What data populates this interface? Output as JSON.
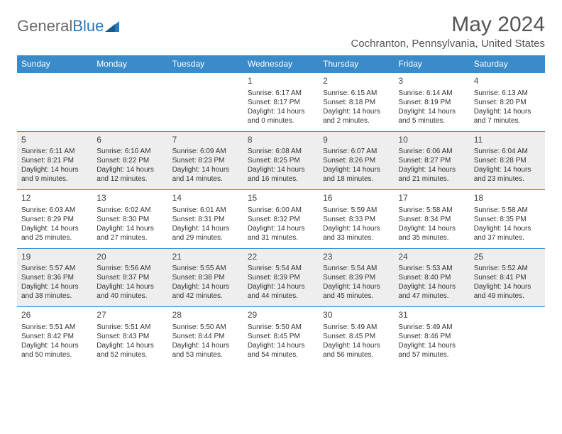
{
  "logo": {
    "text1": "General",
    "text2": "Blue"
  },
  "header": {
    "month_title": "May 2024",
    "location": "Cochranton, Pennsylvania, United States"
  },
  "colors": {
    "header_bg": "#3a8bc9",
    "alt_row_bg": "#eeeeee",
    "text": "#333333",
    "title_text": "#555555"
  },
  "day_names": [
    "Sunday",
    "Monday",
    "Tuesday",
    "Wednesday",
    "Thursday",
    "Friday",
    "Saturday"
  ],
  "weeks": [
    [
      null,
      null,
      null,
      {
        "n": "1",
        "sr": "Sunrise: 6:17 AM",
        "ss": "Sunset: 8:17 PM",
        "d1": "Daylight: 14 hours",
        "d2": "and 0 minutes."
      },
      {
        "n": "2",
        "sr": "Sunrise: 6:15 AM",
        "ss": "Sunset: 8:18 PM",
        "d1": "Daylight: 14 hours",
        "d2": "and 2 minutes."
      },
      {
        "n": "3",
        "sr": "Sunrise: 6:14 AM",
        "ss": "Sunset: 8:19 PM",
        "d1": "Daylight: 14 hours",
        "d2": "and 5 minutes."
      },
      {
        "n": "4",
        "sr": "Sunrise: 6:13 AM",
        "ss": "Sunset: 8:20 PM",
        "d1": "Daylight: 14 hours",
        "d2": "and 7 minutes."
      }
    ],
    [
      {
        "n": "5",
        "sr": "Sunrise: 6:11 AM",
        "ss": "Sunset: 8:21 PM",
        "d1": "Daylight: 14 hours",
        "d2": "and 9 minutes."
      },
      {
        "n": "6",
        "sr": "Sunrise: 6:10 AM",
        "ss": "Sunset: 8:22 PM",
        "d1": "Daylight: 14 hours",
        "d2": "and 12 minutes."
      },
      {
        "n": "7",
        "sr": "Sunrise: 6:09 AM",
        "ss": "Sunset: 8:23 PM",
        "d1": "Daylight: 14 hours",
        "d2": "and 14 minutes."
      },
      {
        "n": "8",
        "sr": "Sunrise: 6:08 AM",
        "ss": "Sunset: 8:25 PM",
        "d1": "Daylight: 14 hours",
        "d2": "and 16 minutes."
      },
      {
        "n": "9",
        "sr": "Sunrise: 6:07 AM",
        "ss": "Sunset: 8:26 PM",
        "d1": "Daylight: 14 hours",
        "d2": "and 18 minutes."
      },
      {
        "n": "10",
        "sr": "Sunrise: 6:06 AM",
        "ss": "Sunset: 8:27 PM",
        "d1": "Daylight: 14 hours",
        "d2": "and 21 minutes."
      },
      {
        "n": "11",
        "sr": "Sunrise: 6:04 AM",
        "ss": "Sunset: 8:28 PM",
        "d1": "Daylight: 14 hours",
        "d2": "and 23 minutes."
      }
    ],
    [
      {
        "n": "12",
        "sr": "Sunrise: 6:03 AM",
        "ss": "Sunset: 8:29 PM",
        "d1": "Daylight: 14 hours",
        "d2": "and 25 minutes."
      },
      {
        "n": "13",
        "sr": "Sunrise: 6:02 AM",
        "ss": "Sunset: 8:30 PM",
        "d1": "Daylight: 14 hours",
        "d2": "and 27 minutes."
      },
      {
        "n": "14",
        "sr": "Sunrise: 6:01 AM",
        "ss": "Sunset: 8:31 PM",
        "d1": "Daylight: 14 hours",
        "d2": "and 29 minutes."
      },
      {
        "n": "15",
        "sr": "Sunrise: 6:00 AM",
        "ss": "Sunset: 8:32 PM",
        "d1": "Daylight: 14 hours",
        "d2": "and 31 minutes."
      },
      {
        "n": "16",
        "sr": "Sunrise: 5:59 AM",
        "ss": "Sunset: 8:33 PM",
        "d1": "Daylight: 14 hours",
        "d2": "and 33 minutes."
      },
      {
        "n": "17",
        "sr": "Sunrise: 5:58 AM",
        "ss": "Sunset: 8:34 PM",
        "d1": "Daylight: 14 hours",
        "d2": "and 35 minutes."
      },
      {
        "n": "18",
        "sr": "Sunrise: 5:58 AM",
        "ss": "Sunset: 8:35 PM",
        "d1": "Daylight: 14 hours",
        "d2": "and 37 minutes."
      }
    ],
    [
      {
        "n": "19",
        "sr": "Sunrise: 5:57 AM",
        "ss": "Sunset: 8:36 PM",
        "d1": "Daylight: 14 hours",
        "d2": "and 38 minutes."
      },
      {
        "n": "20",
        "sr": "Sunrise: 5:56 AM",
        "ss": "Sunset: 8:37 PM",
        "d1": "Daylight: 14 hours",
        "d2": "and 40 minutes."
      },
      {
        "n": "21",
        "sr": "Sunrise: 5:55 AM",
        "ss": "Sunset: 8:38 PM",
        "d1": "Daylight: 14 hours",
        "d2": "and 42 minutes."
      },
      {
        "n": "22",
        "sr": "Sunrise: 5:54 AM",
        "ss": "Sunset: 8:39 PM",
        "d1": "Daylight: 14 hours",
        "d2": "and 44 minutes."
      },
      {
        "n": "23",
        "sr": "Sunrise: 5:54 AM",
        "ss": "Sunset: 8:39 PM",
        "d1": "Daylight: 14 hours",
        "d2": "and 45 minutes."
      },
      {
        "n": "24",
        "sr": "Sunrise: 5:53 AM",
        "ss": "Sunset: 8:40 PM",
        "d1": "Daylight: 14 hours",
        "d2": "and 47 minutes."
      },
      {
        "n": "25",
        "sr": "Sunrise: 5:52 AM",
        "ss": "Sunset: 8:41 PM",
        "d1": "Daylight: 14 hours",
        "d2": "and 49 minutes."
      }
    ],
    [
      {
        "n": "26",
        "sr": "Sunrise: 5:51 AM",
        "ss": "Sunset: 8:42 PM",
        "d1": "Daylight: 14 hours",
        "d2": "and 50 minutes."
      },
      {
        "n": "27",
        "sr": "Sunrise: 5:51 AM",
        "ss": "Sunset: 8:43 PM",
        "d1": "Daylight: 14 hours",
        "d2": "and 52 minutes."
      },
      {
        "n": "28",
        "sr": "Sunrise: 5:50 AM",
        "ss": "Sunset: 8:44 PM",
        "d1": "Daylight: 14 hours",
        "d2": "and 53 minutes."
      },
      {
        "n": "29",
        "sr": "Sunrise: 5:50 AM",
        "ss": "Sunset: 8:45 PM",
        "d1": "Daylight: 14 hours",
        "d2": "and 54 minutes."
      },
      {
        "n": "30",
        "sr": "Sunrise: 5:49 AM",
        "ss": "Sunset: 8:45 PM",
        "d1": "Daylight: 14 hours",
        "d2": "and 56 minutes."
      },
      {
        "n": "31",
        "sr": "Sunrise: 5:49 AM",
        "ss": "Sunset: 8:46 PM",
        "d1": "Daylight: 14 hours",
        "d2": "and 57 minutes."
      },
      null
    ]
  ]
}
